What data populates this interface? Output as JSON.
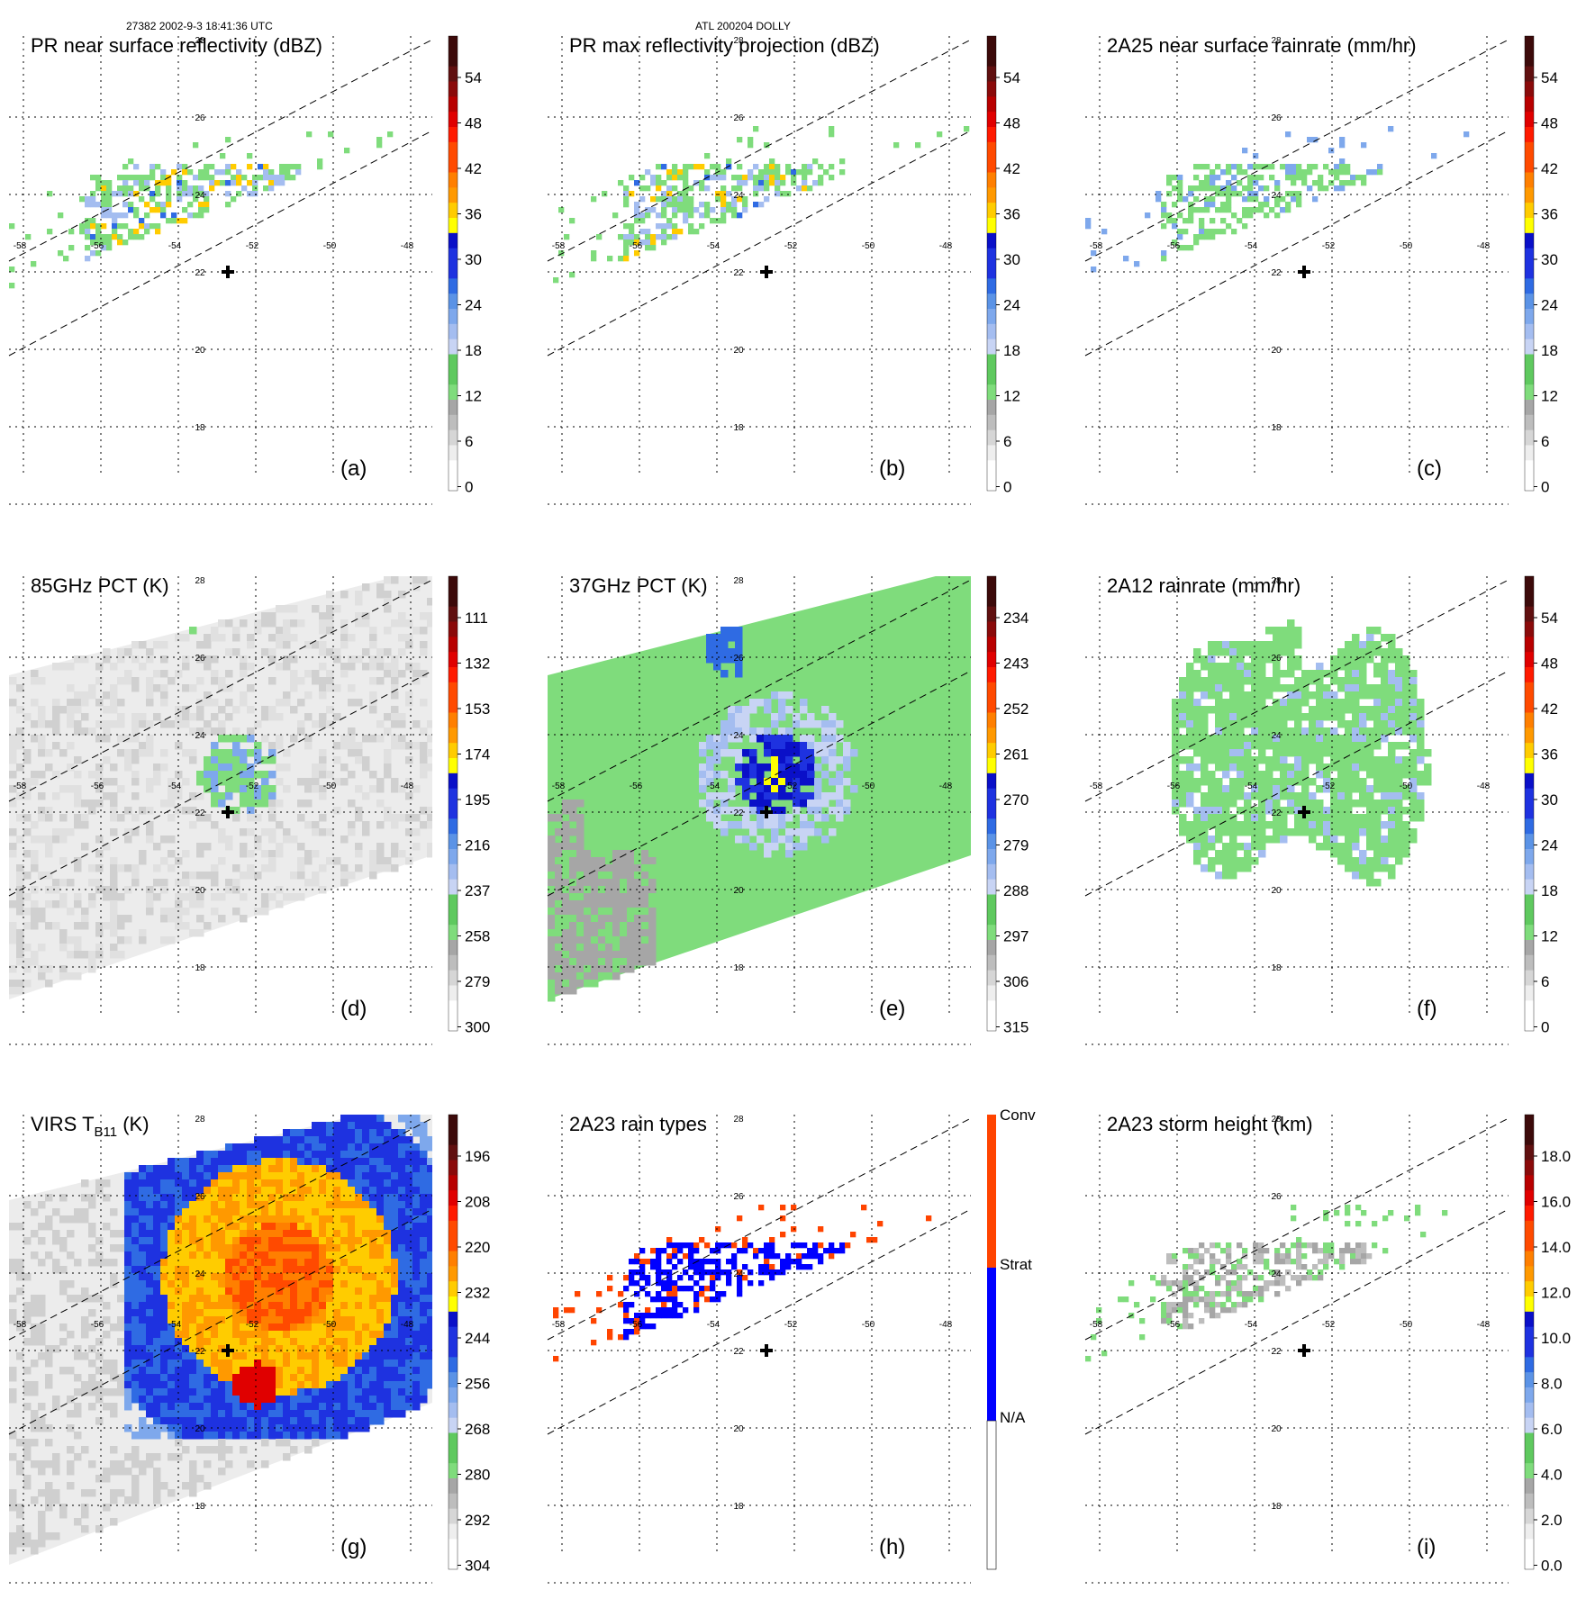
{
  "header": {
    "orbit_time": "27382 2002-9-3 18:41:36 UTC",
    "storm": "ATL 200204 DOLLY"
  },
  "map": {
    "lon_labels": [
      "-58",
      "-56",
      "-54",
      "-52",
      "-50",
      "-48"
    ],
    "lat_labels": [
      "28",
      "26",
      "24",
      "22",
      "20",
      "18"
    ],
    "center_marker": "plus-icon"
  },
  "panels": [
    {
      "id": "a",
      "title": "PR near surface reflectivity (dBZ)",
      "letter": "(a)",
      "swath": "pr",
      "colorbar": {
        "labels": [
          "54",
          "48",
          "42",
          "36",
          "30",
          "24",
          "18",
          "12",
          "6",
          "0"
        ]
      },
      "field": "pr_refl"
    },
    {
      "id": "b",
      "title": "PR max reflectivity projection (dBZ)",
      "letter": "(b)",
      "swath": "pr",
      "colorbar": {
        "labels": [
          "54",
          "48",
          "42",
          "36",
          "30",
          "24",
          "18",
          "12",
          "6",
          "0"
        ]
      },
      "field": "pr_max"
    },
    {
      "id": "c",
      "title": "2A25 near surface rainrate (mm/hr)",
      "letter": "(c)",
      "swath": "pr",
      "colorbar": {
        "labels": [
          "54",
          "48",
          "42",
          "36",
          "30",
          "24",
          "18",
          "12",
          "6",
          "0"
        ]
      },
      "field": "pr_rain"
    },
    {
      "id": "d",
      "title": "85GHz PCT (K)",
      "letter": "(d)",
      "swath": "tmi",
      "colorbar": {
        "labels": [
          "111",
          "132",
          "153",
          "174",
          "195",
          "216",
          "237",
          "258",
          "279",
          "300"
        ]
      },
      "field": "pct85"
    },
    {
      "id": "e",
      "title": "37GHz PCT (K)",
      "letter": "(e)",
      "swath": "tmi",
      "colorbar": {
        "labels": [
          "234",
          "243",
          "252",
          "261",
          "270",
          "279",
          "288",
          "297",
          "306",
          "315"
        ]
      },
      "field": "pct37"
    },
    {
      "id": "f",
      "title": "2A12 rainrate (mm/hr)",
      "letter": "(f)",
      "swath": "tmi",
      "colorbar": {
        "labels": [
          "54",
          "48",
          "42",
          "36",
          "30",
          "24",
          "18",
          "12",
          "6",
          "0"
        ]
      },
      "field": "tmi_rain"
    },
    {
      "id": "g",
      "title": "VIRS T",
      "title_sub": "B11",
      "title_tail": " (K)",
      "letter": "(g)",
      "swath": "virs",
      "colorbar": {
        "labels": [
          "196",
          "208",
          "220",
          "232",
          "244",
          "256",
          "268",
          "280",
          "292",
          "304"
        ]
      },
      "field": "virs"
    },
    {
      "id": "h",
      "title": "2A23 rain types",
      "letter": "(h)",
      "swath": "pr",
      "colorbar": {
        "labels": [
          "Conv",
          "Strat",
          "N/A"
        ]
      },
      "field": "raintype"
    },
    {
      "id": "i",
      "title": "2A23 storm height (km)",
      "letter": "(i)",
      "swath": "pr",
      "colorbar": {
        "labels": [
          "18.0",
          "16.0",
          "14.0",
          "12.0",
          "10.0",
          "8.0",
          "6.0",
          "4.0",
          "2.0",
          "0.0"
        ]
      },
      "field": "height"
    }
  ],
  "colors": {
    "scale": [
      "#ffffff",
      "#eeeeee",
      "#d6d6d6",
      "#bdbdbd",
      "#a6a6a6",
      "#7fdc7c",
      "#5fc95f",
      "#c8d4f4",
      "#a4bdf0",
      "#7ea8ec",
      "#5b93e6",
      "#2f6be3",
      "#1e32e0",
      "#0a10c8",
      "#ffff00",
      "#ffcc00",
      "#ff9900",
      "#ff7f00",
      "#ff4a00",
      "#ff1a00",
      "#e00000",
      "#b80000",
      "#8a0a0a",
      "#601010",
      "#3c0a0a"
    ],
    "accent_conv": "#ff4400",
    "accent_strat": "#0000ff"
  }
}
